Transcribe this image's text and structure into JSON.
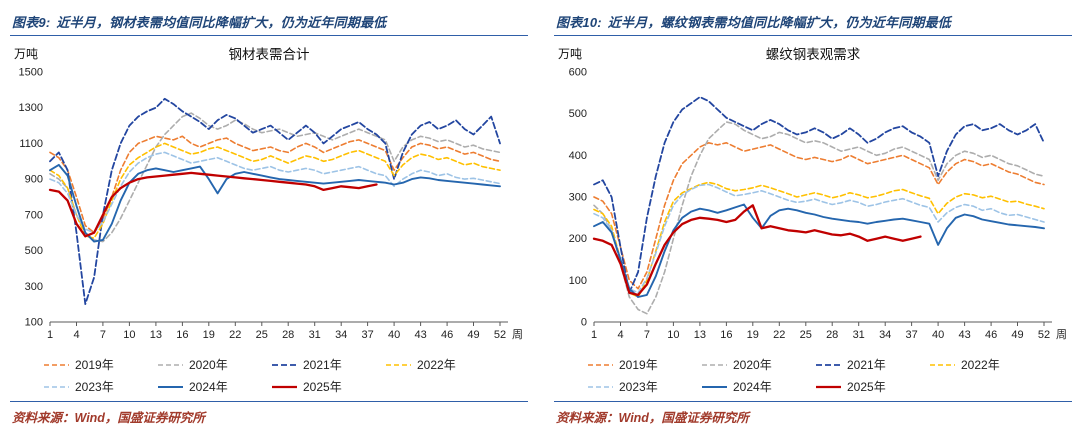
{
  "colors": {
    "header_blue": "#1F4578",
    "rule_blue": "#2F5FA8",
    "source_red": "#A13A2B"
  },
  "panels": [
    {
      "figure_label": "图表9:",
      "header_title": "近半月，钢材表需均值同比降幅扩大，仍为近年同期最低",
      "source": "资料来源：Wind，国盛证券研究所"
    },
    {
      "figure_label": "图表10:",
      "header_title": "近半月，螺纹钢表需均值同比降幅扩大，仍为近年同期最低",
      "source": "资料来源：Wind，国盛证券研究所"
    }
  ],
  "chart_data": [
    {
      "type": "line",
      "title": "钢材表需合计",
      "ylabel": "万吨",
      "xlabel": "周",
      "ylim": [
        100,
        1500
      ],
      "ystep": 200,
      "xlim": [
        1,
        52
      ],
      "xticks": [
        1,
        4,
        7,
        10,
        13,
        16,
        19,
        22,
        25,
        28,
        31,
        34,
        37,
        40,
        43,
        46,
        49,
        52
      ],
      "grid": false,
      "legend_position": "bottom",
      "series": [
        {
          "name": "2019年",
          "color": "#ED7D31",
          "dash": "5,3",
          "width": 1.6,
          "values": [
            1050,
            1020,
            950,
            800,
            640,
            600,
            680,
            800,
            950,
            1050,
            1100,
            1120,
            1140,
            1130,
            1120,
            1140,
            1100,
            1080,
            1100,
            1120,
            1130,
            1100,
            1080,
            1060,
            1070,
            1080,
            1060,
            1050,
            1080,
            1100,
            1080,
            1050,
            1070,
            1090,
            1110,
            1120,
            1100,
            1080,
            1060,
            950,
            1020,
            1080,
            1100,
            1090,
            1070,
            1080,
            1060,
            1040,
            1050,
            1030,
            1010,
            1000
          ]
        },
        {
          "name": "2020年",
          "color": "#ADADAD",
          "dash": "5,3",
          "width": 1.6,
          "values": [
            930,
            900,
            850,
            700,
            600,
            560,
            550,
            600,
            680,
            780,
            880,
            980,
            1080,
            1150,
            1200,
            1250,
            1270,
            1240,
            1200,
            1180,
            1200,
            1230,
            1210,
            1180,
            1160,
            1170,
            1180,
            1160,
            1140,
            1150,
            1160,
            1140,
            1120,
            1140,
            1160,
            1180,
            1160,
            1140,
            1120,
            1000,
            1080,
            1120,
            1140,
            1130,
            1110,
            1120,
            1100,
            1080,
            1090,
            1070,
            1060,
            1050
          ]
        },
        {
          "name": "2021年",
          "color": "#2346A0",
          "dash": "6,3",
          "width": 1.8,
          "values": [
            1000,
            1050,
            950,
            600,
            200,
            350,
            700,
            950,
            1100,
            1200,
            1250,
            1280,
            1300,
            1350,
            1320,
            1280,
            1250,
            1220,
            1180,
            1230,
            1260,
            1240,
            1200,
            1160,
            1180,
            1200,
            1160,
            1120,
            1160,
            1200,
            1160,
            1100,
            1140,
            1180,
            1200,
            1220,
            1180,
            1150,
            1100,
            900,
            1050,
            1150,
            1200,
            1220,
            1180,
            1200,
            1230,
            1180,
            1150,
            1200,
            1250,
            1100
          ]
        },
        {
          "name": "2022年",
          "color": "#FFC000",
          "dash": "5,3",
          "width": 1.6,
          "values": [
            950,
            920,
            850,
            700,
            580,
            570,
            650,
            780,
            900,
            980,
            1020,
            1050,
            1080,
            1100,
            1080,
            1060,
            1040,
            1050,
            1070,
            1080,
            1060,
            1040,
            1020,
            1000,
            1010,
            1030,
            1010,
            990,
            1010,
            1030,
            1020,
            1000,
            1010,
            1030,
            1050,
            1060,
            1040,
            1020,
            1000,
            920,
            980,
            1020,
            1040,
            1030,
            1010,
            1020,
            1000,
            980,
            990,
            970,
            960,
            950
          ]
        },
        {
          "name": "2023年",
          "color": "#9DC3E6",
          "dash": "5,3",
          "width": 1.6,
          "values": [
            900,
            880,
            820,
            700,
            620,
            600,
            660,
            760,
            860,
            940,
            990,
            1020,
            1040,
            1050,
            1030,
            1010,
            990,
            1000,
            1010,
            1020,
            1000,
            980,
            960,
            950,
            960,
            970,
            950,
            940,
            950,
            960,
            950,
            930,
            940,
            950,
            960,
            970,
            950,
            930,
            920,
            860,
            900,
            930,
            950,
            940,
            920,
            930,
            910,
            900,
            905,
            895,
            885,
            875
          ]
        },
        {
          "name": "2024年",
          "color": "#2566AE",
          "dash": "",
          "width": 1.9,
          "values": [
            950,
            980,
            920,
            750,
            600,
            550,
            560,
            650,
            780,
            880,
            930,
            950,
            960,
            950,
            940,
            950,
            960,
            970,
            900,
            820,
            900,
            930,
            940,
            930,
            920,
            910,
            900,
            895,
            890,
            885,
            880,
            875,
            880,
            885,
            890,
            895,
            890,
            885,
            880,
            870,
            880,
            900,
            910,
            905,
            895,
            890,
            885,
            880,
            875,
            870,
            865,
            860
          ]
        },
        {
          "name": "2025年",
          "color": "#C00000",
          "dash": "",
          "width": 2.3,
          "values": [
            840,
            830,
            780,
            650,
            580,
            600,
            700,
            800,
            850,
            880,
            900,
            910,
            915,
            920,
            925,
            930,
            935,
            930,
            925,
            920,
            915,
            910,
            905,
            900,
            895,
            890,
            885,
            880,
            875,
            870,
            860,
            840,
            850,
            860,
            855,
            850,
            860,
            870
          ]
        }
      ]
    },
    {
      "type": "line",
      "title": "螺纹钢表观需求",
      "ylabel": "万吨",
      "xlabel": "周",
      "ylim": [
        0,
        600
      ],
      "ystep": 100,
      "xlim": [
        1,
        52
      ],
      "xticks": [
        1,
        4,
        7,
        10,
        13,
        16,
        19,
        22,
        25,
        28,
        31,
        34,
        37,
        40,
        43,
        46,
        49,
        52
      ],
      "grid": false,
      "legend_position": "bottom",
      "series": [
        {
          "name": "2019年",
          "color": "#ED7D31",
          "dash": "5,3",
          "width": 1.6,
          "values": [
            300,
            290,
            260,
            180,
            100,
            80,
            120,
            200,
            280,
            340,
            380,
            400,
            420,
            430,
            425,
            430,
            420,
            410,
            415,
            420,
            425,
            415,
            405,
            395,
            390,
            395,
            390,
            385,
            390,
            400,
            390,
            380,
            385,
            390,
            395,
            400,
            390,
            380,
            370,
            330,
            360,
            380,
            390,
            385,
            375,
            380,
            370,
            360,
            355,
            345,
            335,
            330
          ]
        },
        {
          "name": "2020年",
          "color": "#ADADAD",
          "dash": "5,3",
          "width": 1.6,
          "values": [
            280,
            260,
            220,
            140,
            60,
            30,
            20,
            60,
            120,
            200,
            280,
            350,
            400,
            440,
            460,
            480,
            475,
            460,
            450,
            440,
            445,
            455,
            450,
            440,
            430,
            435,
            430,
            420,
            410,
            415,
            420,
            410,
            400,
            405,
            415,
            420,
            410,
            400,
            390,
            340,
            380,
            400,
            410,
            405,
            395,
            400,
            390,
            380,
            375,
            365,
            355,
            350
          ]
        },
        {
          "name": "2021年",
          "color": "#2346A0",
          "dash": "6,3",
          "width": 1.8,
          "values": [
            330,
            340,
            300,
            180,
            70,
            120,
            250,
            350,
            430,
            480,
            510,
            525,
            540,
            530,
            510,
            490,
            480,
            470,
            460,
            475,
            485,
            475,
            460,
            450,
            455,
            465,
            455,
            440,
            450,
            465,
            450,
            430,
            440,
            455,
            465,
            470,
            455,
            445,
            430,
            350,
            410,
            450,
            470,
            475,
            460,
            465,
            475,
            460,
            450,
            460,
            475,
            430
          ]
        },
        {
          "name": "2022年",
          "color": "#FFC000",
          "dash": "5,3",
          "width": 1.6,
          "values": [
            270,
            260,
            230,
            150,
            70,
            60,
            100,
            170,
            240,
            290,
            310,
            320,
            330,
            335,
            330,
            320,
            315,
            318,
            322,
            328,
            322,
            315,
            308,
            300,
            305,
            310,
            305,
            298,
            303,
            310,
            305,
            298,
            302,
            308,
            315,
            318,
            310,
            303,
            297,
            260,
            285,
            300,
            308,
            305,
            298,
            302,
            295,
            288,
            290,
            283,
            278,
            272
          ]
        },
        {
          "name": "2023年",
          "color": "#9DC3E6",
          "dash": "5,3",
          "width": 1.6,
          "values": [
            260,
            250,
            220,
            150,
            80,
            70,
            105,
            165,
            230,
            280,
            305,
            318,
            328,
            330,
            322,
            312,
            303,
            306,
            310,
            315,
            308,
            300,
            292,
            287,
            290,
            295,
            288,
            282,
            286,
            292,
            287,
            278,
            282,
            288,
            292,
            296,
            288,
            280,
            275,
            240,
            262,
            275,
            282,
            278,
            268,
            272,
            262,
            256,
            258,
            252,
            246,
            240
          ]
        },
        {
          "name": "2024年",
          "color": "#2566AE",
          "dash": "",
          "width": 1.9,
          "values": [
            230,
            240,
            215,
            150,
            80,
            60,
            65,
            110,
            170,
            220,
            250,
            265,
            272,
            268,
            262,
            268,
            275,
            282,
            250,
            225,
            255,
            268,
            272,
            268,
            262,
            258,
            252,
            248,
            245,
            242,
            240,
            236,
            240,
            243,
            246,
            248,
            244,
            240,
            236,
            185,
            225,
            250,
            258,
            254,
            246,
            242,
            238,
            234,
            232,
            230,
            228,
            225
          ]
        },
        {
          "name": "2025年",
          "color": "#C00000",
          "dash": "",
          "width": 2.3,
          "values": [
            200,
            195,
            185,
            140,
            70,
            65,
            90,
            140,
            185,
            215,
            235,
            245,
            250,
            248,
            245,
            240,
            245,
            265,
            280,
            225,
            230,
            225,
            220,
            218,
            215,
            220,
            215,
            210,
            208,
            212,
            205,
            195,
            200,
            205,
            200,
            195,
            200,
            205
          ]
        }
      ]
    }
  ]
}
